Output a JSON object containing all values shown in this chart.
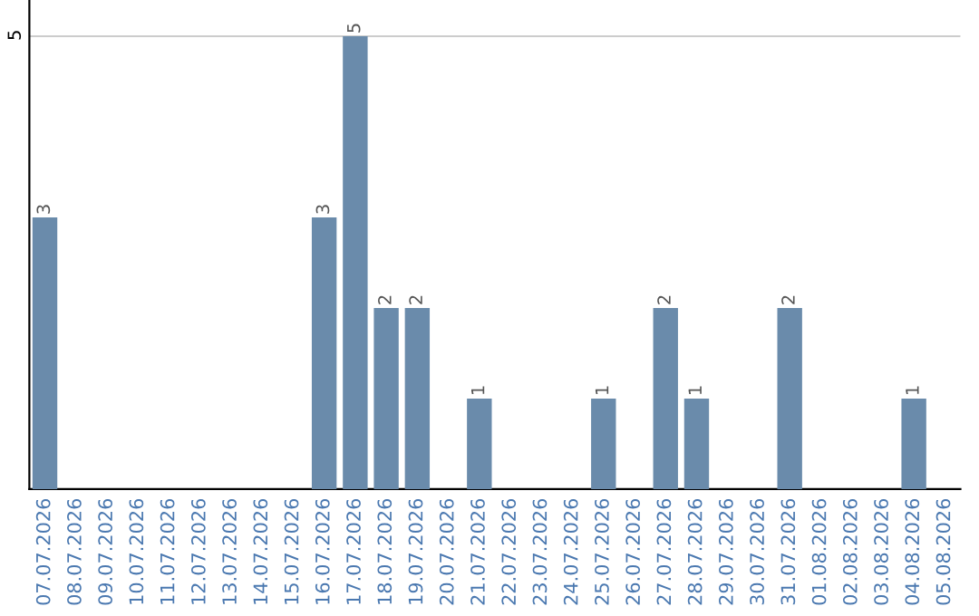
{
  "chart_data": {
    "type": "bar",
    "categories": [
      "07.07.2026",
      "08.07.2026",
      "09.07.2026",
      "10.07.2026",
      "11.07.2026",
      "12.07.2026",
      "13.07.2026",
      "14.07.2026",
      "15.07.2026",
      "16.07.2026",
      "17.07.2026",
      "18.07.2026",
      "19.07.2026",
      "20.07.2026",
      "21.07.2026",
      "22.07.2026",
      "23.07.2026",
      "24.07.2026",
      "25.07.2026",
      "26.07.2026",
      "27.07.2026",
      "28.07.2026",
      "29.07.2026",
      "30.07.2026",
      "31.07.2026",
      "01.08.2026",
      "02.08.2026",
      "03.08.2026",
      "04.08.2026",
      "05.08.2026"
    ],
    "values": [
      3,
      0,
      0,
      0,
      0,
      0,
      0,
      0,
      0,
      3,
      5,
      2,
      2,
      0,
      1,
      0,
      0,
      0,
      1,
      0,
      2,
      1,
      0,
      0,
      2,
      0,
      0,
      0,
      1,
      0
    ],
    "value_labels": [
      "3",
      null,
      null,
      null,
      null,
      null,
      null,
      null,
      null,
      "3",
      "5",
      "2",
      "2",
      null,
      "1",
      null,
      null,
      null,
      "1",
      null,
      "2",
      "1",
      null,
      null,
      "2",
      null,
      null,
      null,
      "1",
      null
    ],
    "color": "#6a8bab",
    "ylim": [
      0,
      5.4
    ],
    "yticks": [
      5
    ],
    "grid": "y"
  }
}
